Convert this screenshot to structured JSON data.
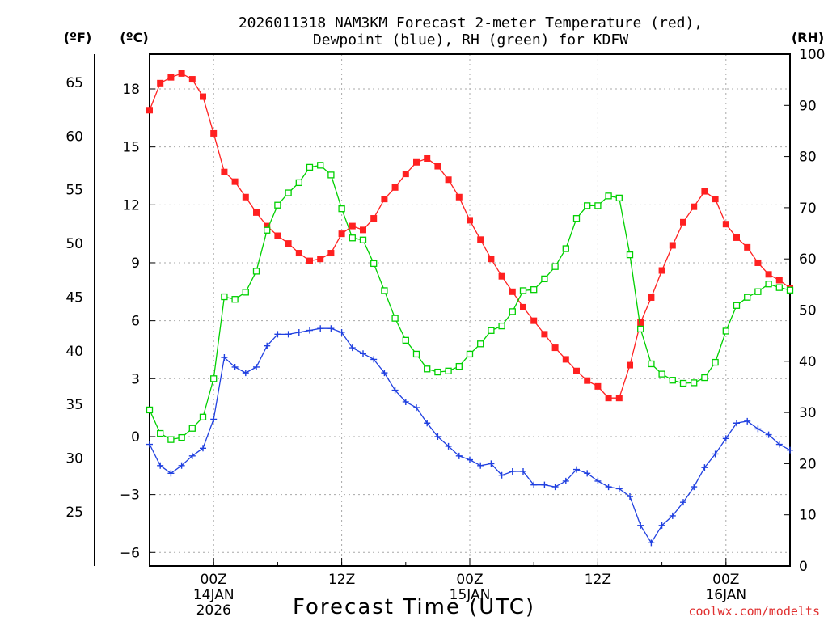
{
  "chart_data": {
    "type": "line",
    "title_line1": "2026011318 NAM3KM Forecast 2-meter Temperature (red),",
    "title_line2": "Dewpoint (blue), RH (green) for KDFW",
    "xlabel": "Forecast Time (UTC)",
    "credit": "coolwx.com/modelts",
    "axis_units": {
      "fahrenheit": "(ºF)",
      "celsius": "(ºC)",
      "rh": "(RH)"
    },
    "celsius_axis": {
      "ylim": [
        -6.7,
        19.8
      ],
      "ticks": [
        "18",
        "15",
        "12",
        "9",
        "6",
        "3",
        "0",
        "−3",
        "−6"
      ]
    },
    "fahrenheit_ticks": [
      "65",
      "60",
      "55",
      "50",
      "45",
      "40",
      "35",
      "30",
      "25"
    ],
    "rh_axis": {
      "ylim": [
        0,
        100
      ],
      "ticks": [
        "100",
        "90",
        "80",
        "70",
        "60",
        "50",
        "40",
        "30",
        "20",
        "10",
        "0"
      ]
    },
    "x_ticks": [
      {
        "hour": 0,
        "time": "00Z",
        "date": "14JAN",
        "year": "2026"
      },
      {
        "hour": 12,
        "time": "12Z",
        "date": "",
        "year": ""
      },
      {
        "hour": 24,
        "time": "00Z",
        "date": "15JAN",
        "year": ""
      },
      {
        "hour": 36,
        "time": "12Z",
        "date": "",
        "year": ""
      },
      {
        "hour": 48,
        "time": "00Z",
        "date": "16JAN",
        "year": ""
      }
    ],
    "x_range_hours": [
      -6,
      54
    ],
    "series": [
      {
        "name": "Temperature",
        "units": "C",
        "color": "#ff2020",
        "marker": "filled-square",
        "start_hour": -6,
        "values": [
          16.9,
          18.3,
          18.6,
          18.8,
          18.5,
          17.6,
          15.7,
          13.7,
          13.2,
          12.4,
          11.6,
          10.9,
          10.4,
          10.0,
          9.5,
          9.1,
          9.2,
          9.5,
          10.5,
          10.9,
          10.7,
          11.3,
          12.3,
          12.9,
          13.6,
          14.2,
          14.4,
          14.0,
          13.3,
          12.4,
          11.2,
          10.2,
          9.2,
          8.3,
          7.5,
          6.7,
          6.0,
          5.3,
          4.6,
          4.0,
          3.4,
          2.9,
          2.6,
          2.0,
          2.0,
          3.7,
          5.9,
          7.2,
          8.6,
          9.9,
          11.1,
          11.9,
          12.7,
          12.3,
          11.0,
          10.3,
          9.8,
          9.0,
          8.4,
          8.1,
          7.7
        ]
      },
      {
        "name": "Dewpoint",
        "units": "C",
        "color": "#2040e0",
        "marker": "plus",
        "start_hour": -6,
        "values": [
          -0.4,
          -1.5,
          -1.9,
          -1.5,
          -1.0,
          -0.6,
          0.9,
          4.1,
          3.6,
          3.3,
          3.6,
          4.7,
          5.3,
          5.3,
          5.4,
          5.5,
          5.6,
          5.6,
          5.4,
          4.6,
          4.3,
          4.0,
          3.3,
          2.4,
          1.8,
          1.5,
          0.7,
          0.0,
          -0.5,
          -1.0,
          -1.2,
          -1.5,
          -1.4,
          -2.0,
          -1.8,
          -1.8,
          -2.5,
          -2.5,
          -2.6,
          -2.3,
          -1.7,
          -1.9,
          -2.3,
          -2.6,
          -2.7,
          -3.1,
          -4.6,
          -5.5,
          -4.6,
          -4.1,
          -3.4,
          -2.6,
          -1.6,
          -0.9,
          -0.1,
          0.7,
          0.8,
          0.4,
          0.1,
          -0.4,
          -0.7
        ]
      },
      {
        "name": "Relative Humidity",
        "units": "%",
        "color": "#00d000",
        "marker": "open-square",
        "start_hour": -6,
        "values": [
          30.5,
          25.9,
          24.7,
          25.1,
          26.9,
          29.1,
          36.6,
          52.6,
          52.1,
          53.5,
          57.6,
          65.6,
          70.5,
          72.9,
          74.9,
          77.9,
          78.3,
          76.4,
          69.8,
          64.1,
          63.7,
          59.1,
          53.8,
          48.4,
          44.1,
          41.4,
          38.5,
          37.9,
          38.1,
          39.0,
          41.4,
          43.4,
          46.0,
          46.9,
          49.7,
          53.8,
          54.0,
          56.1,
          58.5,
          62.0,
          67.9,
          70.4,
          70.4,
          72.3,
          71.9,
          60.8,
          46.3,
          39.5,
          37.5,
          36.3,
          35.7,
          35.8,
          36.8,
          39.8,
          45.9,
          50.9,
          52.5,
          53.6,
          55.1,
          54.4,
          53.9
        ]
      }
    ]
  }
}
